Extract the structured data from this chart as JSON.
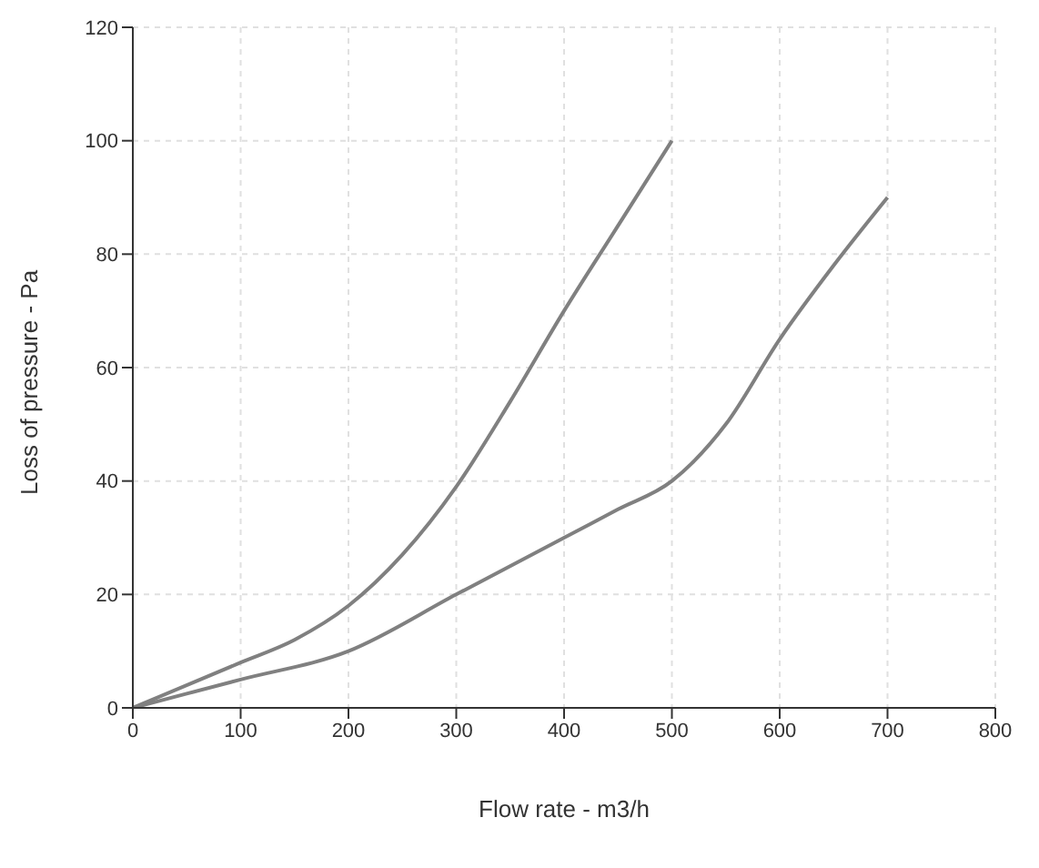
{
  "chart_data": {
    "type": "line",
    "xlabel": "Flow rate - m3/h",
    "ylabel": "Loss of pressure - Pa",
    "xlim": [
      0,
      800
    ],
    "xticks": [
      0,
      100,
      200,
      300,
      400,
      500,
      600,
      700,
      800
    ],
    "ylim": [
      0,
      120
    ],
    "yticks": [
      0,
      20,
      40,
      60,
      80,
      100,
      120
    ],
    "grid": true,
    "marker": "none",
    "series": [
      {
        "color": "#808080",
        "x": [
          0,
          100,
          150,
          200,
          250,
          300,
          350,
          400,
          450,
          500
        ],
        "values": [
          0,
          8,
          12,
          18,
          27,
          39,
          54,
          70,
          85,
          100
        ]
      },
      {
        "color": "#808080",
        "x": [
          0,
          100,
          200,
          300,
          400,
          450,
          500,
          550,
          600,
          650,
          700
        ],
        "values": [
          0,
          5,
          10,
          20,
          30,
          35,
          40,
          50,
          65,
          78,
          90
        ]
      }
    ]
  }
}
